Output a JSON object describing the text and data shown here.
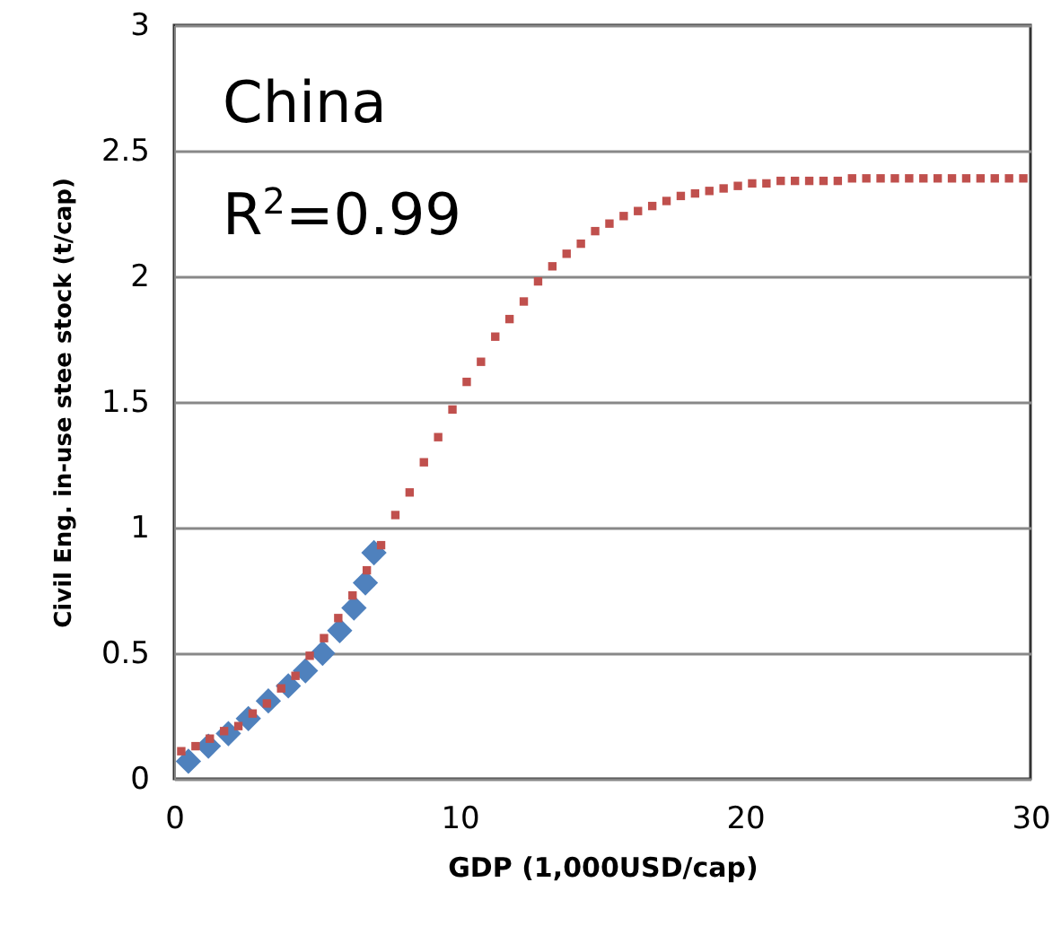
{
  "chart_data": {
    "type": "scatter",
    "xlabel": "GDP (1,000USD/cap)",
    "ylabel": "Civil Eng.  in-use stee stock (t/cap)",
    "annotations": [
      "China",
      "R$^{2}$=0.99"
    ],
    "xlim": [
      0,
      30
    ],
    "xticks": [
      0,
      10,
      20,
      30
    ],
    "ylim": [
      0,
      3
    ],
    "yticks": [
      0,
      0.5,
      1,
      1.5,
      2,
      2.5,
      3
    ],
    "grid": "y",
    "series": [
      {
        "color": "#4f81bd",
        "marker": "diamond",
        "x": [
          0.5,
          1.2,
          1.9,
          2.6,
          3.3,
          4.0,
          4.6,
          5.2,
          5.8,
          6.3,
          6.7,
          7.0
        ],
        "values": [
          0.07,
          0.13,
          0.18,
          0.24,
          0.31,
          0.37,
          0.43,
          0.5,
          0.59,
          0.68,
          0.78,
          0.9
        ]
      },
      {
        "color": "#c0504d",
        "marker": "square",
        "x": [
          0.25,
          0.75,
          1.25,
          1.75,
          2.25,
          2.75,
          3.25,
          3.75,
          4.25,
          4.75,
          5.25,
          5.75,
          6.25,
          6.75,
          7.25,
          7.75,
          8.25,
          8.75,
          9.25,
          9.75,
          10.25,
          10.75,
          11.25,
          11.75,
          12.25,
          12.75,
          13.25,
          13.75,
          14.25,
          14.75,
          15.25,
          15.75,
          16.25,
          16.75,
          17.25,
          17.75,
          18.25,
          18.75,
          19.25,
          19.75,
          20.25,
          20.75,
          21.25,
          21.75,
          22.25,
          22.75,
          23.25,
          23.75,
          24.25,
          24.75,
          25.25,
          25.75,
          26.25,
          26.75,
          27.25,
          27.75,
          28.25,
          28.75,
          29.25,
          29.75
        ],
        "values": [
          0.11,
          0.13,
          0.16,
          0.19,
          0.21,
          0.26,
          0.3,
          0.36,
          0.41,
          0.49,
          0.56,
          0.64,
          0.73,
          0.83,
          0.93,
          1.05,
          1.14,
          1.26,
          1.36,
          1.47,
          1.58,
          1.66,
          1.76,
          1.83,
          1.9,
          1.98,
          2.04,
          2.09,
          2.13,
          2.18,
          2.21,
          2.24,
          2.26,
          2.28,
          2.3,
          2.32,
          2.33,
          2.34,
          2.35,
          2.36,
          2.37,
          2.37,
          2.38,
          2.38,
          2.38,
          2.38,
          2.38,
          2.39,
          2.39,
          2.39,
          2.39,
          2.39,
          2.39,
          2.39,
          2.39,
          2.39,
          2.39,
          2.39,
          2.39,
          2.39
        ]
      }
    ]
  }
}
